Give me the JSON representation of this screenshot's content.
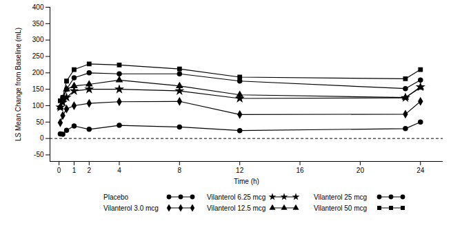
{
  "chart_data": {
    "type": "line",
    "x_label": "Time (h)",
    "y_label": "LS Mean Change from Baseline (mL)",
    "x": [
      0.083,
      0.25,
      0.5,
      1,
      2,
      4,
      8,
      12,
      23,
      24
    ],
    "xlim": [
      -0.6,
      25.5
    ],
    "xticks": [
      0,
      1,
      2,
      4,
      8,
      12,
      16,
      20,
      24
    ],
    "ylim": [
      -70,
      400
    ],
    "yticks": [
      -50,
      0,
      50,
      100,
      150,
      200,
      250,
      300,
      350,
      400
    ],
    "series": [
      {
        "name": "Placebo",
        "color": "#000000",
        "marker": "circle",
        "values": [
          14,
          13,
          25,
          38,
          28,
          40,
          35,
          24,
          30,
          50
        ]
      },
      {
        "name": "Vilanterol 3.0 mcg",
        "color": "#000000",
        "marker": "diamond",
        "values": [
          48,
          70,
          90,
          100,
          107,
          112,
          113,
          73,
          74,
          113
        ]
      },
      {
        "name": "Vilanterol 6.25 mcg",
        "color": "#000000",
        "marker": "star",
        "values": [
          95,
          110,
          125,
          145,
          150,
          150,
          145,
          122,
          124,
          157
        ]
      },
      {
        "name": "Vilanterol 12.5 mcg",
        "color": "#000000",
        "marker": "triangle",
        "values": [
          95,
          120,
          150,
          160,
          165,
          178,
          160,
          133,
          125,
          155
        ]
      },
      {
        "name": "Vilanterol 25 mcg",
        "color": "#000000",
        "marker": "circle",
        "values": [
          95,
          125,
          150,
          185,
          200,
          197,
          197,
          175,
          152,
          178
        ]
      },
      {
        "name": "Vilanterol 50 mcg",
        "color": "#000000",
        "marker": "square",
        "values": [
          115,
          125,
          175,
          210,
          227,
          224,
          212,
          187,
          182,
          210
        ]
      }
    ]
  }
}
